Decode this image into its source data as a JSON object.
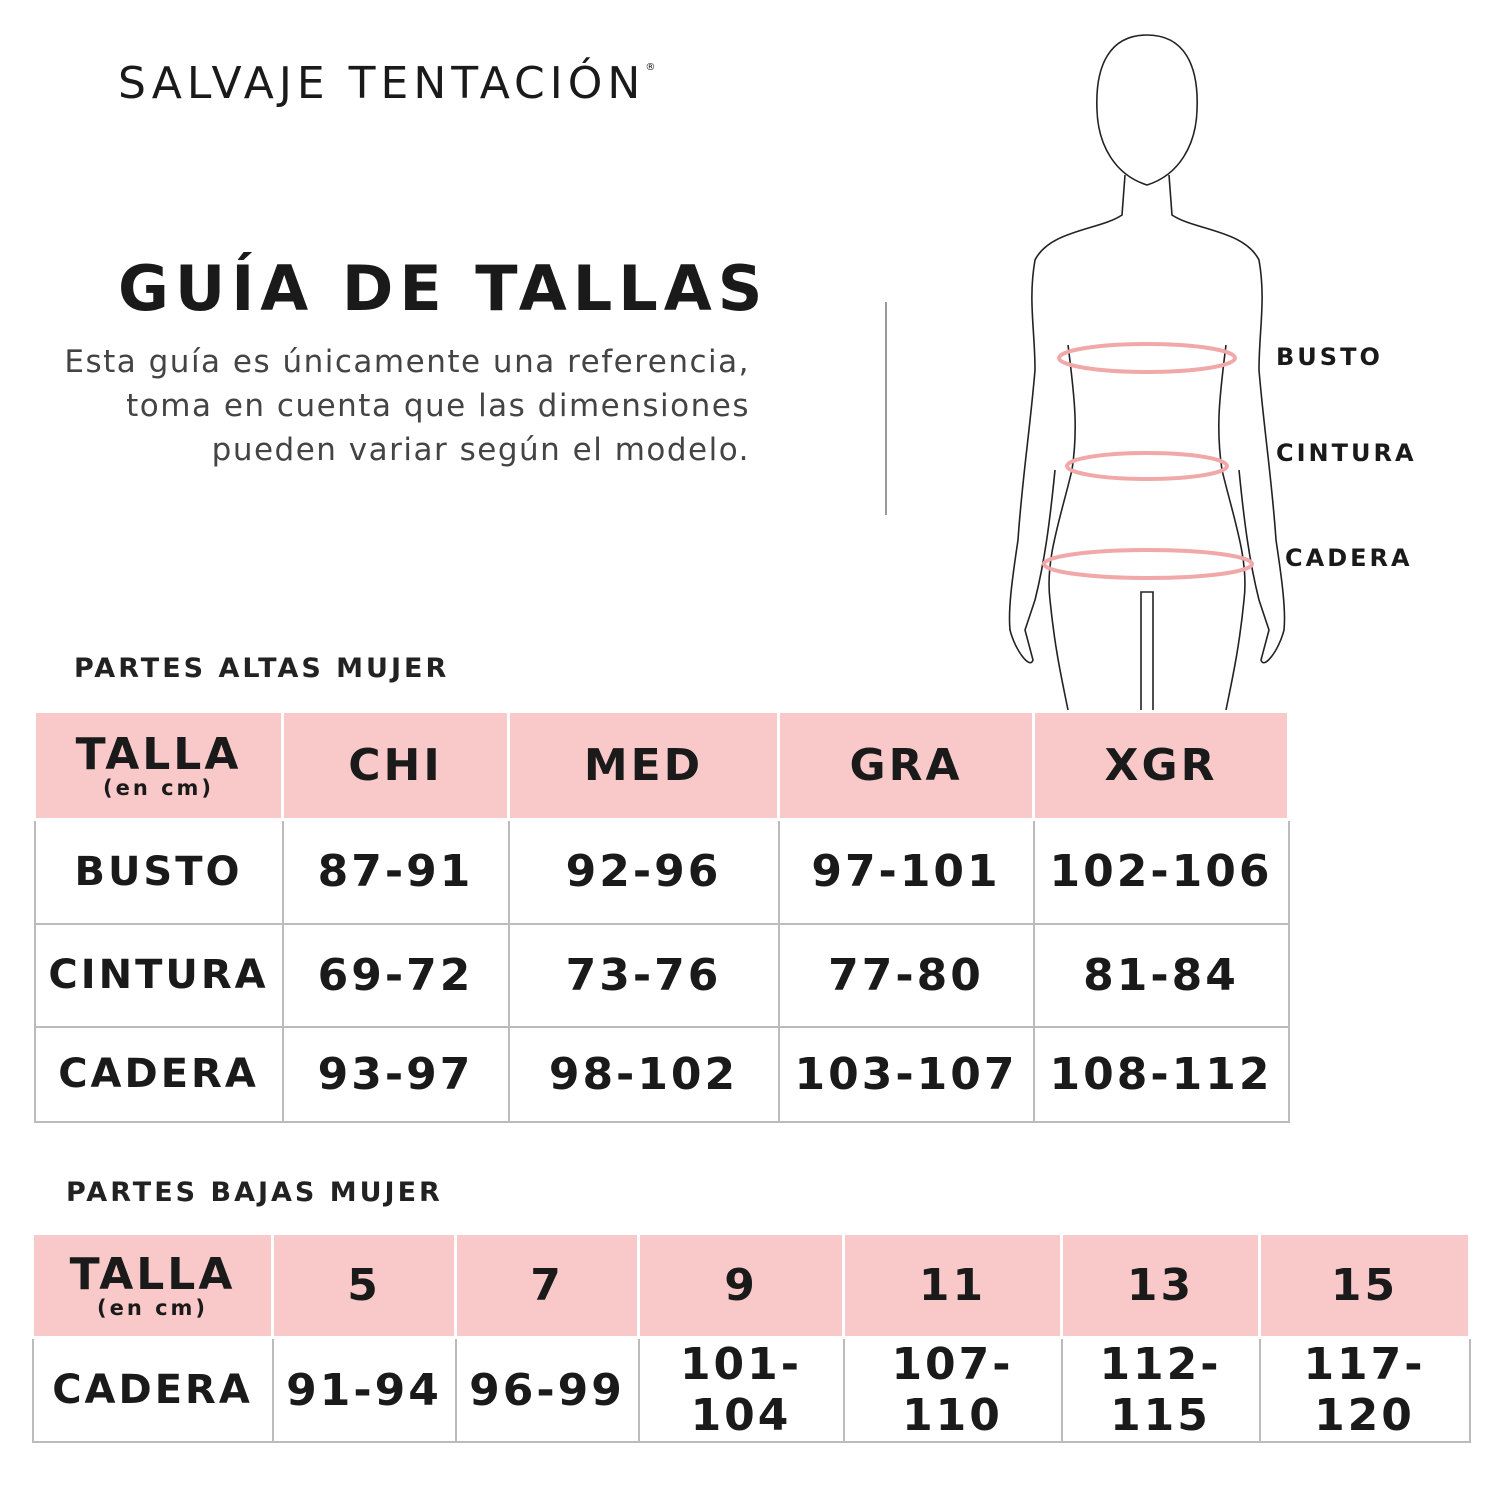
{
  "brand": {
    "name": "SALVAJE TENTACIÓN",
    "registered_mark": "®"
  },
  "header": {
    "title": "GUÍA DE TALLAS",
    "description": "Esta guía es únicamente una referencia, toma en cuenta que las dimensiones pueden variar según el modelo."
  },
  "body_figure": {
    "labels": [
      "BUSTO",
      "CINTURA",
      "CADERA"
    ],
    "measure_color": "#f0a8a8"
  },
  "colors": {
    "header_fill": "#f9c9c9",
    "grid": "#bbbbbb"
  },
  "tops_table": {
    "section_title": "PARTES ALTAS MUJER",
    "corner": {
      "label": "TALLA",
      "unit": "(en cm)"
    },
    "columns": [
      "CHI",
      "MED",
      "GRA",
      "XGR"
    ],
    "rows": [
      {
        "label": "BUSTO",
        "values": [
          "87-91",
          "92-96",
          "97-101",
          "102-106"
        ]
      },
      {
        "label": "CINTURA",
        "values": [
          "69-72",
          "73-76",
          "77-80",
          "81-84"
        ]
      },
      {
        "label": "CADERA",
        "values": [
          "93-97",
          "98-102",
          "103-107",
          "108-112"
        ]
      }
    ]
  },
  "bottoms_table": {
    "section_title": "PARTES BAJAS MUJER",
    "corner": {
      "label": "TALLA",
      "unit": "(en cm)"
    },
    "columns": [
      "5",
      "7",
      "9",
      "11",
      "13",
      "15"
    ],
    "rows": [
      {
        "label": "CADERA",
        "values": [
          "91-94",
          "96-99",
          "101-104",
          "107-110",
          "112-115",
          "117-120"
        ]
      }
    ]
  }
}
